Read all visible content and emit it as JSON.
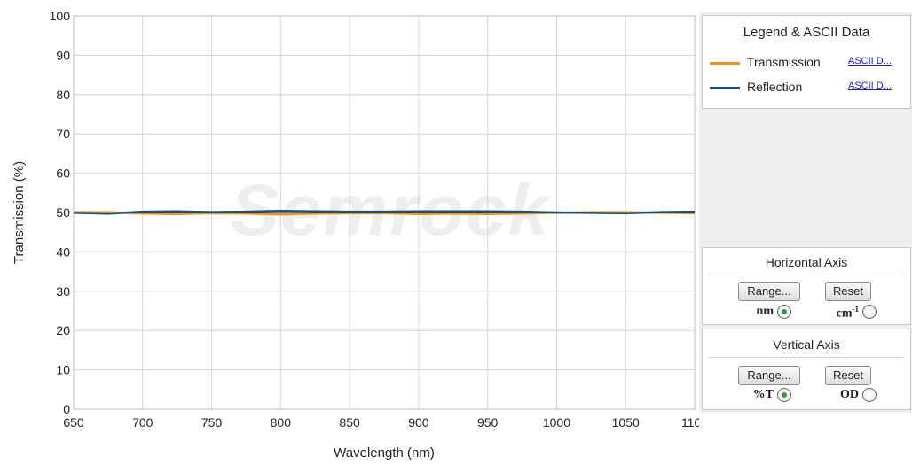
{
  "chart_data": {
    "type": "line",
    "xlabel": "Wavelength (nm)",
    "ylabel": "Transmission (%)",
    "xlim": [
      650,
      1100
    ],
    "ylim": [
      0,
      100
    ],
    "x_ticks": [
      650,
      700,
      750,
      800,
      850,
      900,
      950,
      1000,
      1050,
      1100
    ],
    "y_ticks": [
      0,
      10,
      20,
      30,
      40,
      50,
      60,
      70,
      80,
      90,
      100
    ],
    "grid": true,
    "legend_position": "right",
    "series": [
      {
        "name": "Transmission",
        "color": "#e8961e",
        "x": [
          650,
          675,
          700,
          725,
          750,
          775,
          800,
          825,
          850,
          875,
          900,
          925,
          950,
          975,
          1000,
          1025,
          1050,
          1075,
          1100
        ],
        "y": [
          50.1,
          50.1,
          49.7,
          49.6,
          49.8,
          49.7,
          49.5,
          49.7,
          49.8,
          49.8,
          49.6,
          49.7,
          49.6,
          49.7,
          49.9,
          50.1,
          50.1,
          49.9,
          49.8
        ]
      },
      {
        "name": "Reflection",
        "color": "#1f4e72",
        "x": [
          650,
          675,
          700,
          725,
          750,
          775,
          800,
          825,
          850,
          875,
          900,
          925,
          950,
          975,
          1000,
          1025,
          1050,
          1075,
          1100
        ],
        "y": [
          49.9,
          49.7,
          50.2,
          50.3,
          50.1,
          50.2,
          50.4,
          50.3,
          50.2,
          50.2,
          50.3,
          50.3,
          50.3,
          50.2,
          50.0,
          49.9,
          49.8,
          50.1,
          50.2
        ]
      }
    ],
    "watermark": "Semrock"
  },
  "legend": {
    "title": "Legend & ASCII Data",
    "items": [
      {
        "label": "Transmission",
        "link": "ASCII D...",
        "color": "#e8961e"
      },
      {
        "label": "Reflection",
        "link": "ASCII D...",
        "color": "#1f4e72"
      }
    ]
  },
  "horizontal_axis": {
    "title": "Horizontal Axis",
    "range_label": "Range...",
    "reset_label": "Reset",
    "option_nm": "nm",
    "option_cm": "cm",
    "option_cm_sup": "-1",
    "selected": "nm"
  },
  "vertical_axis": {
    "title": "Vertical Axis",
    "range_label": "Range...",
    "reset_label": "Reset",
    "option_t": "%T",
    "option_od": "OD",
    "selected": "%T"
  }
}
